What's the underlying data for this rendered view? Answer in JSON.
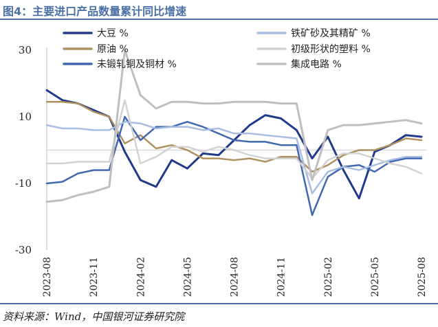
{
  "header": {
    "title": "图4：主要进口产品数量累计同比增速"
  },
  "footer": {
    "source": "资料来源：Wind，中国银河证券研究院"
  },
  "chart_data": {
    "type": "line",
    "title": "图4：主要进口产品数量累计同比增速",
    "xlabel": "",
    "ylabel": "",
    "ylim": [
      -30,
      30
    ],
    "yticks": [
      30,
      10,
      -10,
      -30
    ],
    "grid": false,
    "legend_position": "top",
    "x": [
      "2023-08",
      "2023-09",
      "2023-10",
      "2023-11",
      "2023-12",
      "2024-01",
      "2024-02",
      "2024-03",
      "2024-04",
      "2024-05",
      "2024-06",
      "2024-07",
      "2024-08",
      "2024-09",
      "2024-10",
      "2024-11",
      "2024-12",
      "2025-01",
      "2025-02",
      "2025-03",
      "2025-04",
      "2025-05",
      "2025-06",
      "2025-07",
      "2025-08"
    ],
    "xticks": [
      "2023-08",
      "2023-11",
      "2024-02",
      "2024-05",
      "2024-08",
      "2024-11",
      "2025-02",
      "2025-05",
      "2025-08"
    ],
    "series": [
      {
        "name": "大豆 %",
        "color": "#1f3a8a",
        "width": 3,
        "values": [
          18,
          15,
          14,
          12,
          10,
          -0.5,
          -9,
          -11,
          -3,
          -5.5,
          -1,
          -1.5,
          3,
          7.5,
          10.5,
          9.5,
          6,
          -2.5,
          4,
          -6,
          -14.5,
          -0.5,
          1.5,
          4.5,
          4
        ]
      },
      {
        "name": "原油 %",
        "color": "#b09060",
        "width": 2.5,
        "values": [
          14.5,
          14.5,
          14,
          11.5,
          10,
          2,
          4.5,
          0.5,
          1.5,
          0,
          -2.5,
          -2.5,
          -3,
          -2.5,
          -3.5,
          -2,
          -2,
          -6.5,
          -4.5,
          -1.5,
          0,
          0,
          1.5,
          3.5,
          3
        ]
      },
      {
        "name": "未锻轧铜及铜材 %",
        "color": "#3f68b0",
        "width": 2.5,
        "values": [
          -10,
          -9.5,
          -7,
          -6,
          -6,
          10,
          3,
          7,
          7,
          8.5,
          7,
          5,
          3,
          2.5,
          2.5,
          1.5,
          1.5,
          -19.5,
          -8,
          -5,
          -4.5,
          -6.5,
          -3.5,
          -2.5,
          -2.5
        ]
      },
      {
        "name": "铁矿砂及其精矿 %",
        "color": "#a7bde2",
        "width": 2.5,
        "values": [
          7.5,
          6.5,
          6.5,
          6,
          6,
          8.5,
          8,
          6.5,
          7,
          7,
          6,
          6.5,
          5,
          5,
          4.5,
          4,
          3.5,
          -13,
          -6.5,
          -5,
          -6,
          -4.5,
          -3,
          -2,
          -2
        ]
      },
      {
        "name": "初级形状的塑料 %",
        "color": "#d2d2d2",
        "width": 2.5,
        "values": [
          -4,
          -4,
          -3.5,
          -3.5,
          -3.5,
          15,
          -4,
          -2,
          1,
          1,
          -0.5,
          1,
          0,
          -1.5,
          -2.5,
          -2.5,
          -2.5,
          -8.5,
          -3,
          -1,
          -1,
          -2.5,
          -4,
          -5,
          -7
        ]
      },
      {
        "name": "集成电路 %",
        "color": "#bfbfbf",
        "width": 3,
        "values": [
          -15.5,
          -15,
          -13.5,
          -12.5,
          -11,
          30,
          16.5,
          12.5,
          14.5,
          14.5,
          14,
          14,
          14.5,
          14.5,
          14.5,
          14,
          14,
          -9,
          6,
          7.5,
          7.5,
          8,
          8.5,
          9,
          8
        ]
      }
    ]
  }
}
